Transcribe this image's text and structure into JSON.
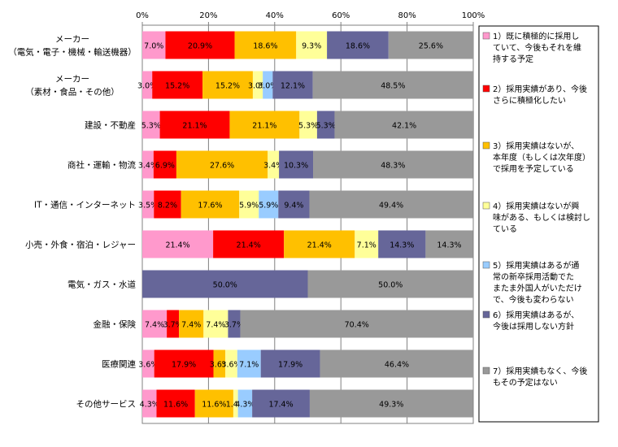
{
  "chart_data": {
    "type": "bar",
    "orientation": "horizontal",
    "stacked": "percent",
    "xlim": [
      0,
      100
    ],
    "x_ticks": [
      "0%",
      "20%",
      "40%",
      "60%",
      "80%",
      "100%"
    ],
    "grid": true,
    "legend_position": "right",
    "categories": [
      [
        "メーカー",
        "（電気・電子・機械・輸送機器）"
      ],
      [
        "メーカー",
        "（素材・食品・その他）"
      ],
      [
        "建設・不動産"
      ],
      [
        "商社・運輸・物流"
      ],
      [
        "IT・通信・インターネット"
      ],
      [
        "小売・外食・宿泊・レジャー"
      ],
      [
        "電気・ガス・水道"
      ],
      [
        "金融・保険"
      ],
      [
        "医療関連"
      ],
      [
        "その他サービス"
      ]
    ],
    "series": [
      {
        "name": [
          "1）既に積極的に採用し",
          "ていて、今後もそれを維",
          "持する予定"
        ],
        "color": "#ff99cc",
        "values": [
          7.0,
          3.0,
          5.3,
          3.4,
          3.5,
          21.4,
          0,
          7.4,
          3.6,
          4.3
        ]
      },
      {
        "name": [
          "2）採用実績があり、今後",
          "さらに積極化したい"
        ],
        "color": "#ff0000",
        "values": [
          20.9,
          15.2,
          21.1,
          6.9,
          8.2,
          21.4,
          0,
          3.7,
          17.9,
          11.6
        ]
      },
      {
        "name": [
          "3）採用実績はないが、",
          "本年度（もしくは次年度）",
          "で採用を予定している"
        ],
        "color": "#ffc000",
        "values": [
          18.6,
          15.2,
          21.1,
          27.6,
          17.6,
          21.4,
          0,
          7.4,
          3.6,
          11.6
        ]
      },
      {
        "name": [
          "4）採用実績はないが興",
          "味がある、もしくは検討し",
          "ている"
        ],
        "color": "#ffff99",
        "values": [
          9.3,
          3.0,
          5.3,
          3.4,
          5.9,
          7.1,
          0,
          7.4,
          3.6,
          1.4
        ]
      },
      {
        "name": [
          "5）採用実績はあるが通",
          "常の新卒採用活動でた",
          "またま外国人がいただけ",
          "で、今後も変わらない"
        ],
        "color": "#99ccff",
        "values": [
          0,
          3.0,
          0,
          0,
          5.9,
          0,
          0,
          0,
          7.1,
          4.3
        ]
      },
      {
        "name": [
          "6）採用実績はあるが、",
          "今後は採用しない方針"
        ],
        "color": "#666699",
        "values": [
          18.6,
          12.1,
          5.3,
          10.3,
          9.4,
          14.3,
          50.0,
          3.7,
          17.9,
          17.4
        ]
      },
      {
        "name": [
          "7）採用実績もなく、今後",
          "もその予定はない"
        ],
        "color": "#999999",
        "values": [
          25.6,
          48.5,
          42.1,
          48.3,
          49.4,
          14.3,
          50.0,
          70.4,
          46.4,
          49.3
        ]
      }
    ]
  }
}
